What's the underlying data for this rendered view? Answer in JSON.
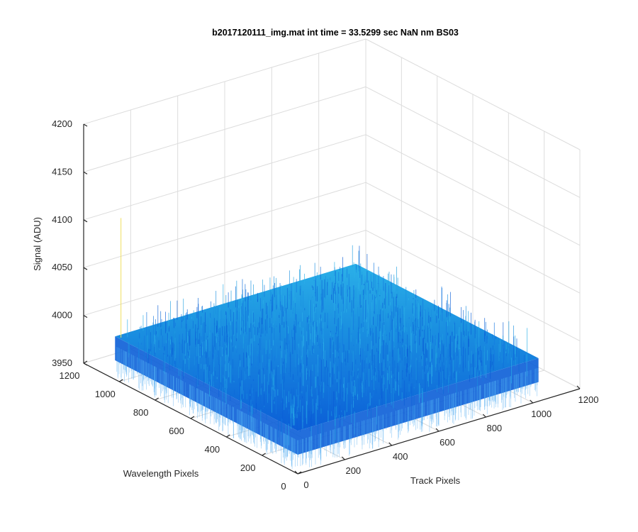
{
  "chart_data": {
    "type": "surface",
    "title": "b2017120111_img.mat int time = 33.5299 sec  NaN nm BS03",
    "xlabel": "Track Pixels",
    "ylabel": "Wavelength Pixels",
    "zlabel": "Signal (ADU)",
    "xlim": [
      0,
      1200
    ],
    "ylim": [
      0,
      1200
    ],
    "zlim": [
      3950,
      4200
    ],
    "xticks": [
      "0",
      "200",
      "400",
      "600",
      "800",
      "1000",
      "1200"
    ],
    "yticks": [
      "0",
      "200",
      "400",
      "600",
      "800",
      "1000",
      "1200"
    ],
    "zticks": [
      "3950",
      "4000",
      "4050",
      "4100",
      "4150",
      "4200"
    ],
    "surface": {
      "x_extent": [
        0,
        1024
      ],
      "y_extent": [
        0,
        1024
      ],
      "mean_signal": 3995,
      "noise_band": [
        3970,
        4030
      ]
    },
    "grid": true,
    "colormap": "parula",
    "colors": {
      "surface_low": "#0b5ed7",
      "surface_mid": "#1a8fe0",
      "surface_high": "#2bb0e8",
      "spike": "#f0e060"
    }
  }
}
